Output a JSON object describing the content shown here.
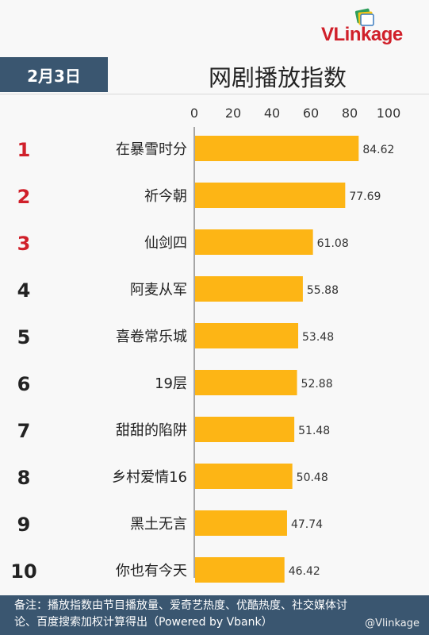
{
  "header": {
    "date": "2月3日",
    "title": "网剧播放指数",
    "brand": "VLinkage"
  },
  "chart_data": {
    "type": "bar",
    "orientation": "horizontal",
    "title": "网剧播放指数",
    "xlim": [
      0,
      100
    ],
    "xticks": [
      "0",
      "20",
      "40",
      "60",
      "80",
      "100"
    ],
    "ranks": [
      "1",
      "2",
      "3",
      "4",
      "5",
      "6",
      "7",
      "8",
      "9",
      "10"
    ],
    "categories": [
      "在暴雪时分",
      "祈今朝",
      "仙剑四",
      "阿麦从军",
      "喜卷常乐城",
      "19层",
      "甜甜的陷阱",
      "乡村爱情16",
      "黑土无言",
      "你也有今天"
    ],
    "values": [
      84.62,
      77.69,
      61.08,
      55.88,
      53.48,
      52.88,
      51.48,
      50.48,
      47.74,
      46.42
    ],
    "value_labels": [
      "84.62",
      "77.69",
      "61.08",
      "55.88",
      "53.48",
      "52.88",
      "51.48",
      "50.48",
      "47.74",
      "46.42"
    ],
    "bar_color": "#fdb515",
    "top_rank_color": "#d0202a",
    "rank_color": "#222222"
  },
  "footer": {
    "note_line1": "备注：播放指数由节目播放量、爱奇艺热度、优酷热度、社交媒体讨",
    "note_line2": "论、百度搜索加权计算得出（Powered by Vbank）",
    "credit": "@Vlinkage"
  }
}
